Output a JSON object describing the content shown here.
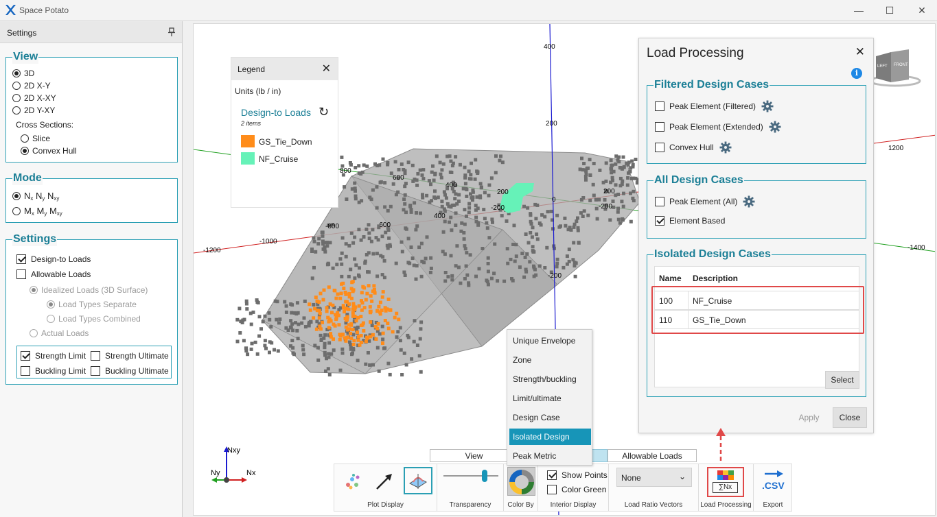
{
  "window": {
    "title": "Space Potato",
    "minimize": "—",
    "maximize": "☐",
    "close": "✕"
  },
  "settings_panel": {
    "title": "Settings",
    "pin_icon": "pin-icon",
    "view": {
      "title": "View",
      "options": [
        "3D",
        "2D X-Y",
        "2D X-XY",
        "2D Y-XY"
      ],
      "selected": "3D",
      "cross_sections_label": "Cross Sections:",
      "cross_sections": [
        "Slice",
        "Convex Hull"
      ],
      "cross_section_selected": "Convex Hull"
    },
    "mode": {
      "title": "Mode",
      "options": [
        {
          "parts": [
            [
              "N",
              "x"
            ],
            [
              "N",
              "y"
            ],
            [
              "N",
              "xy"
            ]
          ],
          "selected": true
        },
        {
          "parts": [
            [
              "M",
              "x"
            ],
            [
              "M",
              "y"
            ],
            [
              "M",
              "xy"
            ]
          ],
          "selected": false
        }
      ]
    },
    "settings": {
      "title": "Settings",
      "design_to_loads": "Design-to Loads",
      "design_to_loads_checked": true,
      "allowable_loads": "Allowable Loads",
      "allowable_loads_checked": false,
      "idealized_loads": "Idealized Loads (3D Surface)",
      "load_types_separate": "Load Types Separate",
      "load_types_combined": "Load Types Combined",
      "actual_loads": "Actual Loads",
      "strength_limit": "Strength Limit",
      "strength_limit_checked": true,
      "strength_ultimate": "Strength Ultimate",
      "buckling_limit": "Buckling Limit",
      "buckling_ultimate": "Buckling Ultimate"
    }
  },
  "viewport": {
    "axis_labels": {
      "y_top": "400",
      "y_200": "200",
      "y_0": "0",
      "y_m200": "-200",
      "red_800": "-800",
      "red_1000": "-1000",
      "red_1200": "-1200",
      "green_800": "800",
      "green_600": "600",
      "green_400": "400",
      "green_200": "200",
      "green_m200": "-200",
      "green_m400": "-400",
      "green_m600": "-600",
      "right_1200": "1200",
      "right_m1400": "-1400",
      "r200": "200",
      "r_m200": "-200",
      "c_m200": "-200",
      "c_400": "400"
    },
    "gizmo": {
      "nxy": "Nxy",
      "ny": "Ny",
      "nx": "Nx"
    },
    "cube": {
      "left": "LEFT",
      "front": "FRONT"
    }
  },
  "legend": {
    "title": "Legend",
    "units": "Units (lb / in)",
    "section": "Design-to Loads",
    "count": "2 items",
    "items": [
      {
        "label": "GS_Tie_Down",
        "color": "#ff8c1a"
      },
      {
        "label": "NF_Cruise",
        "color": "#66f2b8"
      }
    ]
  },
  "load_processing": {
    "title": "Load Processing",
    "info_icon": "i",
    "filtered": {
      "title": "Filtered Design Cases",
      "items": [
        {
          "label": "Peak Element (Filtered)",
          "checked": false
        },
        {
          "label": "Peak Element (Extended)",
          "checked": false
        },
        {
          "label": "Convex Hull",
          "checked": false
        }
      ]
    },
    "all": {
      "title": "All Design Cases",
      "items": [
        {
          "label": "Peak Element (All)",
          "checked": false,
          "gear": true
        },
        {
          "label": "Element Based",
          "checked": true,
          "gear": false
        }
      ]
    },
    "isolated": {
      "title": "Isolated Design Cases",
      "col_name": "Name",
      "col_desc": "Description",
      "rows": [
        {
          "name": "100",
          "desc": "NF_Cruise"
        },
        {
          "name": "110",
          "desc": "GS_Tie_Down"
        }
      ],
      "select_label": "Select"
    },
    "apply_label": "Apply",
    "close_label": "Close"
  },
  "color_by_menu": {
    "items": [
      "Unique Envelope",
      "Zone",
      "Strength/buckling",
      "Limit/ultimate",
      "Design Case",
      "Isolated Design Case",
      "Peak Metric"
    ],
    "selected": "Isolated Design Case"
  },
  "bottom": {
    "tabs": {
      "view": "View",
      "allowable": "Allowable Loads"
    },
    "plot_display": "Plot Display",
    "transparency": "Transparency",
    "transparency_value": 0.78,
    "color_by": "Color By",
    "show_points": "Show Points",
    "show_points_checked": true,
    "color_green": "Color Green",
    "interior_display": "Interior Display",
    "ratio_value": "None",
    "load_ratio_vectors": "Load Ratio Vectors",
    "load_processing": "Load Processing",
    "load_processing_icon_text": "∑Nx",
    "export_icon_text": ".CSV",
    "export": "Export"
  },
  "colors": {
    "accent": "#1b7f96",
    "highlight": "#1795b8",
    "red_box": "#e04848",
    "orange": "#ff8c1a",
    "green": "#66f2b8"
  }
}
